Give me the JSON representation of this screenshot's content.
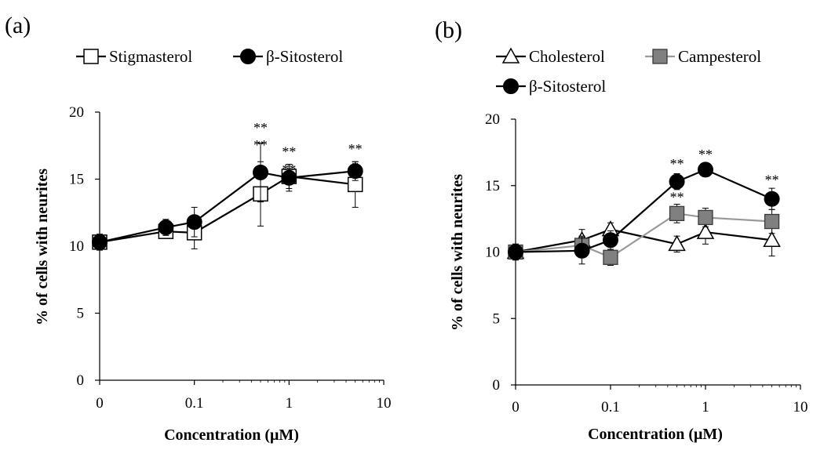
{
  "chart_data": [
    {
      "type": "line",
      "panel_label": "(a)",
      "xlabel": "Concentration (μM)",
      "ylabel": "% of cells with neurites",
      "x_scale": "log with zero",
      "x_ticks": [
        "0",
        "0.1",
        "1",
        "10"
      ],
      "y_ticks": [
        "0",
        "5",
        "10",
        "15",
        "20"
      ],
      "ylim": [
        0,
        20
      ],
      "grid": false,
      "legend_position": "top",
      "series": [
        {
          "name": "Stigmasterol",
          "marker": "square-open",
          "line_color": "#000000",
          "fill": "#ffffff",
          "x": [
            0,
            0.05,
            0.1,
            0.5,
            1,
            5
          ],
          "y": [
            10.3,
            11.1,
            11.0,
            13.9,
            15.2,
            14.6
          ],
          "err": [
            0.6,
            0.3,
            1.2,
            2.4,
            0.9,
            1.7
          ]
        },
        {
          "name": "β-Sitosterol",
          "marker": "circle-filled",
          "line_color": "#000000",
          "fill": "#000000",
          "x": [
            0,
            0.05,
            0.1,
            0.5,
            1,
            5
          ],
          "y": [
            10.3,
            11.4,
            11.8,
            15.5,
            15.1,
            15.6
          ],
          "err": [
            0.5,
            0.6,
            1.1,
            2.2,
            1.0,
            0.7
          ]
        }
      ],
      "annotations": [
        {
          "x": 0.5,
          "y": 18.9,
          "text": "**"
        },
        {
          "x": 0.5,
          "y": 17.6,
          "text": "**"
        },
        {
          "x": 1,
          "y": 17.1,
          "text": "**"
        },
        {
          "x": 1,
          "y": 15.8,
          "text": "**"
        },
        {
          "x": 5,
          "y": 17.3,
          "text": "**"
        },
        {
          "x": 5,
          "y": 16.0,
          "text": "*"
        }
      ]
    },
    {
      "type": "line",
      "panel_label": "(b)",
      "xlabel": "Concentration (μM)",
      "ylabel": "% of cells with neurites",
      "x_scale": "log with zero",
      "x_ticks": [
        "0",
        "0.1",
        "1",
        "10"
      ],
      "y_ticks": [
        "0",
        "5",
        "10",
        "15",
        "20"
      ],
      "ylim": [
        0,
        20
      ],
      "grid": false,
      "legend_position": "top",
      "series": [
        {
          "name": "Cholesterol",
          "marker": "triangle-open",
          "line_color": "#000000",
          "fill": "#ffffff",
          "x": [
            0,
            0.05,
            0.1,
            0.5,
            1,
            5
          ],
          "y": [
            10.0,
            10.9,
            11.7,
            10.6,
            11.5,
            10.9
          ],
          "err": [
            0.6,
            0.8,
            0.5,
            0.6,
            0.9,
            1.2
          ]
        },
        {
          "name": "Campesterol",
          "marker": "square-filled-gray",
          "line_color": "#999999",
          "fill": "#808080",
          "x": [
            0,
            0.05,
            0.1,
            0.5,
            1,
            5
          ],
          "y": [
            10.0,
            10.5,
            9.6,
            12.9,
            12.6,
            12.3
          ],
          "err": [
            0.6,
            0.7,
            0.6,
            0.7,
            0.7,
            0.9
          ]
        },
        {
          "name": "β-Sitosterol",
          "marker": "circle-filled",
          "line_color": "#000000",
          "fill": "#000000",
          "x": [
            0,
            0.05,
            0.1,
            0.5,
            1,
            5
          ],
          "y": [
            10.0,
            10.1,
            10.9,
            15.3,
            16.2,
            14.0
          ],
          "err": [
            0.5,
            1.0,
            0.7,
            0.6,
            0.5,
            0.8
          ]
        }
      ],
      "annotations": [
        {
          "x": 0.5,
          "y": 16.7,
          "text": "**"
        },
        {
          "x": 0.5,
          "y": 14.2,
          "text": "**"
        },
        {
          "x": 1,
          "y": 17.4,
          "text": "**"
        },
        {
          "x": 5,
          "y": 15.5,
          "text": "**"
        }
      ]
    }
  ]
}
